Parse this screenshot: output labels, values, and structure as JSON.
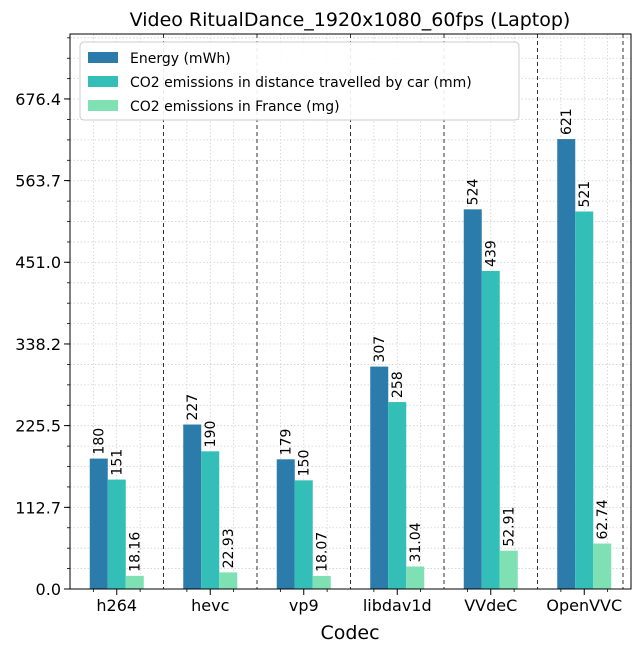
{
  "chart_data": {
    "type": "bar",
    "title": "Video RitualDance_1920x1080_60fps (Laptop)",
    "xlabel": "Codec",
    "ylabel": "",
    "categories": [
      "h264",
      "hevc",
      "vp9",
      "libdav1d",
      "VVdeC",
      "OpenVVC"
    ],
    "series": [
      {
        "name": "Energy (mWh)",
        "color": "#2b7bab",
        "values": [
          180,
          227,
          179,
          307,
          524,
          621
        ],
        "labels": [
          "180",
          "227",
          "179",
          "307",
          "524",
          "621"
        ]
      },
      {
        "name": "CO2 emissions in distance travelled by car (mm)",
        "color": "#33bfb8",
        "values": [
          151,
          190,
          150,
          258,
          439,
          521
        ],
        "labels": [
          "151",
          "190",
          "150",
          "258",
          "439",
          "521"
        ]
      },
      {
        "name": "CO2 emissions in France (mg)",
        "color": "#7fe0b4",
        "values": [
          18.16,
          22.93,
          18.07,
          31.04,
          52.91,
          62.74
        ],
        "labels": [
          "18.16",
          "22.93",
          "18.07",
          "31.04",
          "52.91",
          "62.74"
        ]
      }
    ],
    "yticks": [
      0.0,
      112.7,
      225.5,
      338.2,
      451.0,
      563.7,
      676.4
    ],
    "ytick_labels": [
      "0.0",
      "112.7",
      "225.5",
      "338.2",
      "451.0",
      "563.7",
      "676.4"
    ],
    "ylim": [
      0,
      766
    ],
    "grid": "major+minor dotted",
    "legend_position": "upper-left"
  }
}
